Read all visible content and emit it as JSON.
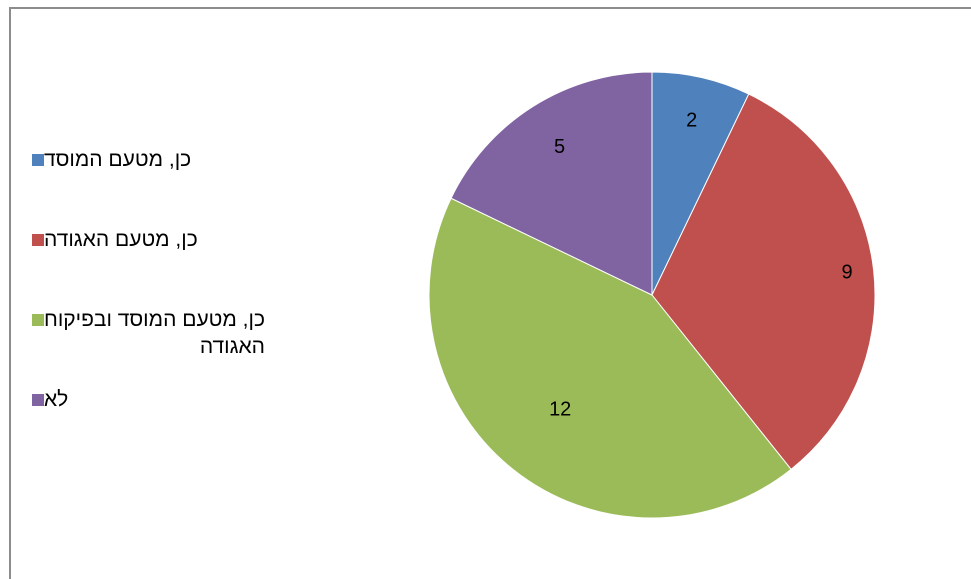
{
  "chart_data": {
    "type": "pie",
    "title": "",
    "categories": [
      "כן, מטעם המוסד",
      "כן, מטעם האגודה",
      "כן, מטעם המוסד ובפיקוח האגודה",
      "לא"
    ],
    "values": [
      2,
      9,
      12,
      5
    ],
    "colors": [
      "#4f81bd",
      "#c0504d",
      "#9bbb59",
      "#8064a2"
    ],
    "start_angle_deg": 0,
    "direction": "clockwise",
    "data_labels": true,
    "legend_position": "left"
  },
  "legend": {
    "items": [
      {
        "label": "כן, מטעם המוסד",
        "color": "#4f81bd"
      },
      {
        "label": "כן, מטעם האגודה",
        "color": "#c0504d"
      },
      {
        "label": "כן, מטעם המוסד ובפיקוח\nהאגודה",
        "color": "#9bbb59"
      },
      {
        "label": "לא",
        "color": "#8064a2"
      }
    ]
  },
  "data_labels": [
    "2",
    "9",
    "12",
    "5"
  ]
}
